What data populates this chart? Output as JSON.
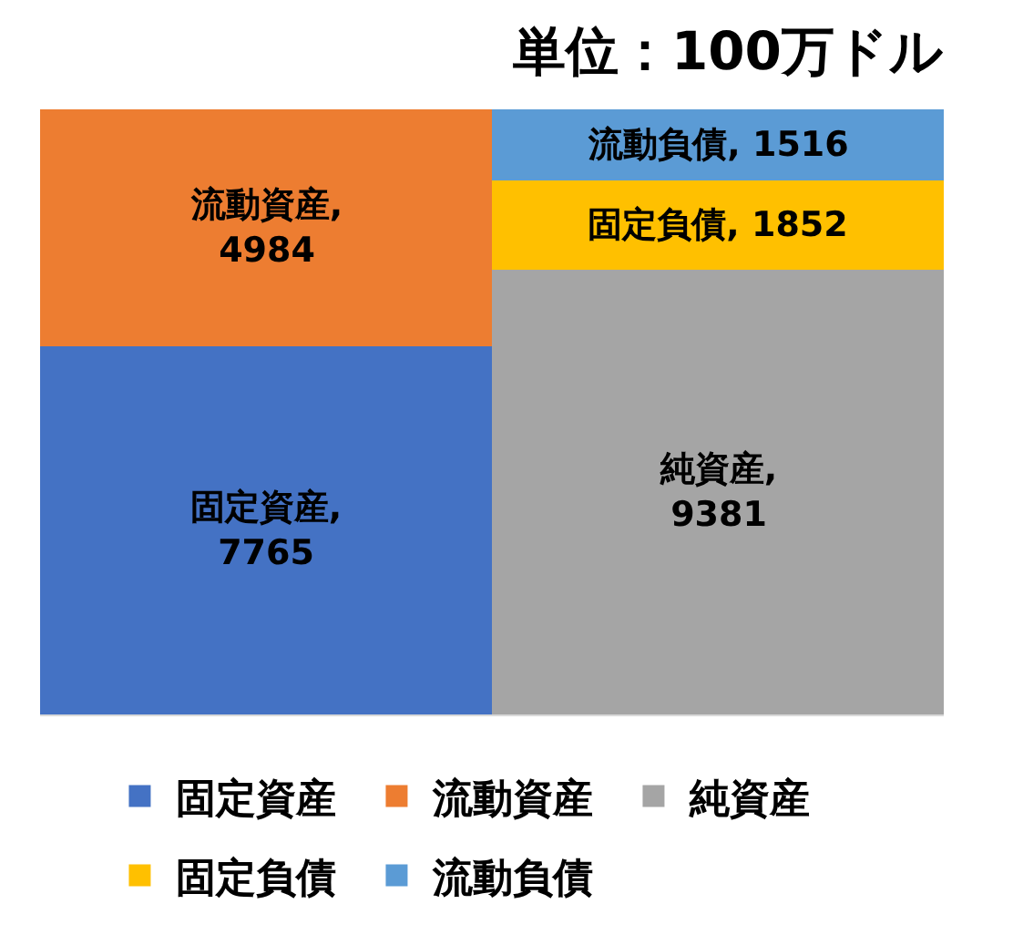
{
  "chart_data": {
    "type": "bar",
    "stacked": true,
    "title": "単位：100万ドル",
    "categories": [
      null,
      null
    ],
    "series": [
      {
        "name": "固定資産",
        "color": "#4472c4",
        "values": [
          7765,
          null
        ],
        "value_labels": [
          "固定資産,\n7765",
          null
        ]
      },
      {
        "name": "流動資産",
        "color": "#ed7d31",
        "values": [
          4984,
          null
        ],
        "value_labels": [
          "流動資産,\n4984",
          null
        ]
      },
      {
        "name": "純資産",
        "color": "#a5a5a5",
        "values": [
          null,
          9381
        ],
        "value_labels": [
          null,
          "純資産,\n9381"
        ]
      },
      {
        "name": "固定負債",
        "color": "#ffc000",
        "values": [
          null,
          1852
        ],
        "value_labels": [
          null,
          "固定負債, 1852"
        ]
      },
      {
        "name": "流動負債",
        "color": "#5b9bd5",
        "values": [
          null,
          1516
        ],
        "value_labels": [
          null,
          "流動負債, 1516"
        ]
      }
    ],
    "tick_labels": false,
    "legend": "bottom"
  }
}
